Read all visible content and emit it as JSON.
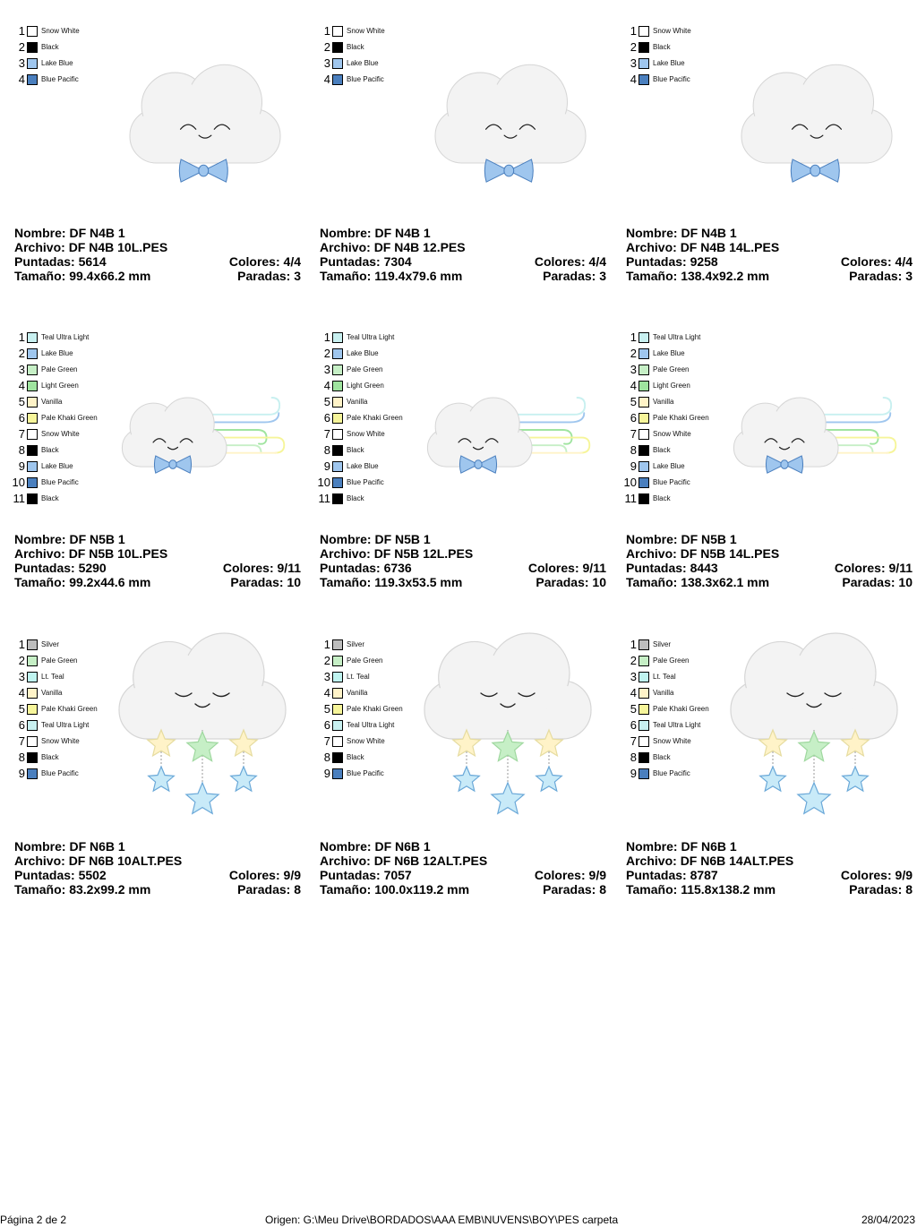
{
  "labels": {
    "name": "Nombre:",
    "file": "Archivo:",
    "stitches": "Puntadas:",
    "size": "Tamaño:",
    "colors": "Colores:",
    "stops": "Paradas:"
  },
  "swatch_colors": {
    "Snow White": "#ffffff",
    "Black": "#000000",
    "Lake Blue": "#9fc6ee",
    "Blue Pacific": "#4a7fbe",
    "Teal Ultra Light": "#c8f0f0",
    "Pale Green": "#c6efc6",
    "Light Green": "#9fe49f",
    "Vanilla": "#fff3c8",
    "Pale Khaki Green": "#f6f59a",
    "Silver": "#bdbdbd",
    "Lt. Teal": "#bff4f0"
  },
  "designs": [
    {
      "motif": "bow",
      "palette": [
        {
          "n": "1",
          "name": "Snow White"
        },
        {
          "n": "2",
          "name": "Black"
        },
        {
          "n": "3",
          "name": "Lake Blue"
        },
        {
          "n": "4",
          "name": "Blue Pacific"
        }
      ],
      "name": "DF N4B 1",
      "file": "DF N4B 10L.PES",
      "stitches": "5614",
      "colors": "4/4",
      "size": "99.4x66.2 mm",
      "stops": "3"
    },
    {
      "motif": "bow",
      "palette": [
        {
          "n": "1",
          "name": "Snow White"
        },
        {
          "n": "2",
          "name": "Black"
        },
        {
          "n": "3",
          "name": "Lake Blue"
        },
        {
          "n": "4",
          "name": "Blue Pacific"
        }
      ],
      "name": "DF N4B 1",
      "file": "DF N4B 12.PES",
      "stitches": "7304",
      "colors": "4/4",
      "size": "119.4x79.6 mm",
      "stops": "3"
    },
    {
      "motif": "bow",
      "palette": [
        {
          "n": "1",
          "name": "Snow White"
        },
        {
          "n": "2",
          "name": "Black"
        },
        {
          "n": "3",
          "name": "Lake Blue"
        },
        {
          "n": "4",
          "name": "Blue Pacific"
        }
      ],
      "name": "DF N4B 1",
      "file": "DF N4B 14L.PES",
      "stitches": "9258",
      "colors": "4/4",
      "size": "138.4x92.2 mm",
      "stops": "3"
    },
    {
      "motif": "wind",
      "palette": [
        {
          "n": "1",
          "name": "Teal Ultra Light"
        },
        {
          "n": "2",
          "name": "Lake Blue"
        },
        {
          "n": "3",
          "name": "Pale Green"
        },
        {
          "n": "4",
          "name": "Light Green"
        },
        {
          "n": "5",
          "name": "Vanilla"
        },
        {
          "n": "6",
          "name": "Pale Khaki Green"
        },
        {
          "n": "7",
          "name": "Snow White"
        },
        {
          "n": "8",
          "name": "Black"
        },
        {
          "n": "9",
          "name": "Lake Blue"
        },
        {
          "n": "10",
          "name": "Blue Pacific"
        },
        {
          "n": "11",
          "name": "Black"
        }
      ],
      "name": "DF N5B 1",
      "file": "DF N5B 10L.PES",
      "stitches": "5290",
      "colors": "9/11",
      "size": "99.2x44.6 mm",
      "stops": "10"
    },
    {
      "motif": "wind",
      "palette": [
        {
          "n": "1",
          "name": "Teal Ultra Light"
        },
        {
          "n": "2",
          "name": "Lake Blue"
        },
        {
          "n": "3",
          "name": "Pale Green"
        },
        {
          "n": "4",
          "name": "Light Green"
        },
        {
          "n": "5",
          "name": "Vanilla"
        },
        {
          "n": "6",
          "name": "Pale Khaki Green"
        },
        {
          "n": "7",
          "name": "Snow White"
        },
        {
          "n": "8",
          "name": "Black"
        },
        {
          "n": "9",
          "name": "Lake Blue"
        },
        {
          "n": "10",
          "name": "Blue Pacific"
        },
        {
          "n": "11",
          "name": "Black"
        }
      ],
      "name": "DF N5B 1",
      "file": "DF N5B 12L.PES",
      "stitches": "6736",
      "colors": "9/11",
      "size": "119.3x53.5 mm",
      "stops": "10"
    },
    {
      "motif": "wind",
      "palette": [
        {
          "n": "1",
          "name": "Teal Ultra Light"
        },
        {
          "n": "2",
          "name": "Lake Blue"
        },
        {
          "n": "3",
          "name": "Pale Green"
        },
        {
          "n": "4",
          "name": "Light Green"
        },
        {
          "n": "5",
          "name": "Vanilla"
        },
        {
          "n": "6",
          "name": "Pale Khaki Green"
        },
        {
          "n": "7",
          "name": "Snow White"
        },
        {
          "n": "8",
          "name": "Black"
        },
        {
          "n": "9",
          "name": "Lake Blue"
        },
        {
          "n": "10",
          "name": "Blue Pacific"
        },
        {
          "n": "11",
          "name": "Black"
        }
      ],
      "name": "DF N5B 1",
      "file": "DF N5B 14L.PES",
      "stitches": "8443",
      "colors": "9/11",
      "size": "138.3x62.1 mm",
      "stops": "10"
    },
    {
      "motif": "stars",
      "palette": [
        {
          "n": "1",
          "name": "Silver"
        },
        {
          "n": "2",
          "name": "Pale Green"
        },
        {
          "n": "3",
          "name": "Lt. Teal"
        },
        {
          "n": "4",
          "name": "Vanilla"
        },
        {
          "n": "5",
          "name": "Pale Khaki Green"
        },
        {
          "n": "6",
          "name": "Teal Ultra Light"
        },
        {
          "n": "7",
          "name": "Snow White"
        },
        {
          "n": "8",
          "name": "Black"
        },
        {
          "n": "9",
          "name": "Blue Pacific"
        }
      ],
      "name": "DF N6B 1",
      "file": "DF N6B 10ALT.PES",
      "stitches": "5502",
      "colors": "9/9",
      "size": "83.2x99.2 mm",
      "stops": "8"
    },
    {
      "motif": "stars",
      "palette": [
        {
          "n": "1",
          "name": "Silver"
        },
        {
          "n": "2",
          "name": "Pale Green"
        },
        {
          "n": "3",
          "name": "Lt. Teal"
        },
        {
          "n": "4",
          "name": "Vanilla"
        },
        {
          "n": "5",
          "name": "Pale Khaki Green"
        },
        {
          "n": "6",
          "name": "Teal Ultra Light"
        },
        {
          "n": "7",
          "name": "Snow White"
        },
        {
          "n": "8",
          "name": "Black"
        },
        {
          "n": "9",
          "name": "Blue Pacific"
        }
      ],
      "name": "DF N6B 1",
      "file": "DF N6B 12ALT.PES",
      "stitches": "7057",
      "colors": "9/9",
      "size": "100.0x119.2 mm",
      "stops": "8"
    },
    {
      "motif": "stars",
      "palette": [
        {
          "n": "1",
          "name": "Silver"
        },
        {
          "n": "2",
          "name": "Pale Green"
        },
        {
          "n": "3",
          "name": "Lt. Teal"
        },
        {
          "n": "4",
          "name": "Vanilla"
        },
        {
          "n": "5",
          "name": "Pale Khaki Green"
        },
        {
          "n": "6",
          "name": "Teal Ultra Light"
        },
        {
          "n": "7",
          "name": "Snow White"
        },
        {
          "n": "8",
          "name": "Black"
        },
        {
          "n": "9",
          "name": "Blue Pacific"
        }
      ],
      "name": "DF N6B 1",
      "file": "DF N6B 14ALT.PES",
      "stitches": "8787",
      "colors": "9/9",
      "size": "115.8x138.2 mm",
      "stops": "8"
    }
  ],
  "footer": {
    "page": "Página 2 de 2",
    "origin": "Origen: G:\\Meu Drive\\BORDADOS\\AAA EMB\\NUVENS\\BOY\\PES carpeta",
    "date": "28/04/2023"
  }
}
